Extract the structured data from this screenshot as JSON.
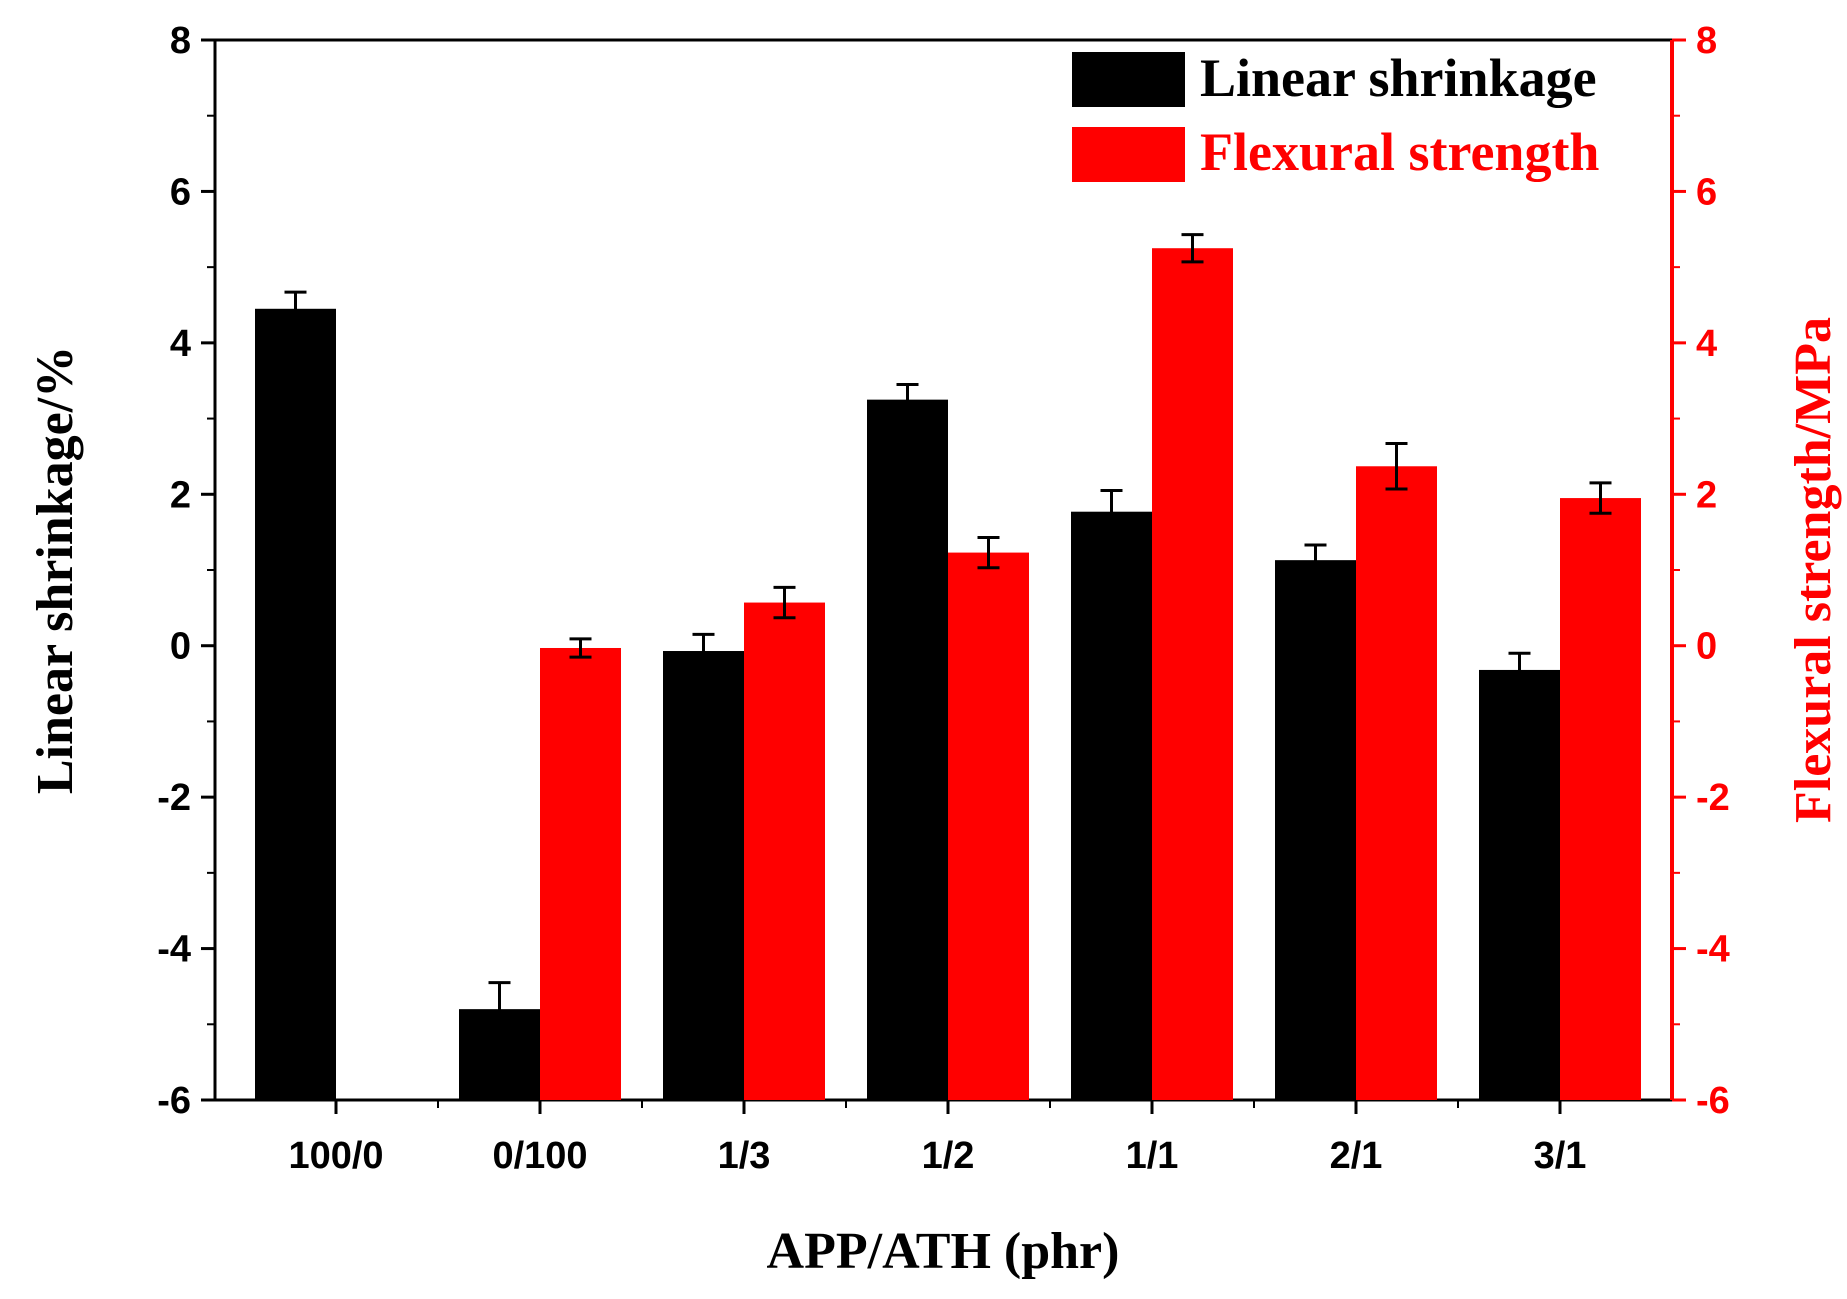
{
  "chart_data": {
    "type": "bar",
    "categories": [
      "100/0",
      "0/100",
      "1/3",
      "1/2",
      "1/1",
      "2/1",
      "3/1"
    ],
    "xlabel": "APP/ATH (phr)",
    "ylabel": "Linear shrinkage/%",
    "y2label": "Flexural strength/MPa",
    "ylim": [
      -6,
      8
    ],
    "y2lim": [
      -6,
      8
    ],
    "yticks": [
      "-6",
      "-4",
      "-2",
      "0",
      "2",
      "4",
      "6",
      "8"
    ],
    "y2ticks": [
      "-6",
      "-4",
      "-2",
      "0",
      "2",
      "4",
      "6",
      "8"
    ],
    "legend_position": "top-right",
    "series": [
      {
        "name": "Linear shrinkage",
        "axis": "left",
        "color": "#000000",
        "values": [
          4.45,
          -4.8,
          -0.07,
          3.25,
          1.77,
          1.13,
          -0.32
        ],
        "errors": [
          0.22,
          0.35,
          0.22,
          0.2,
          0.28,
          0.2,
          0.22
        ]
      },
      {
        "name": "Flexural strength",
        "axis": "right",
        "color": "#ff0000",
        "values": [
          null,
          -0.03,
          0.57,
          1.23,
          5.25,
          2.37,
          1.95
        ],
        "errors": [
          null,
          0.12,
          0.2,
          0.2,
          0.18,
          0.3,
          0.2
        ]
      }
    ]
  }
}
